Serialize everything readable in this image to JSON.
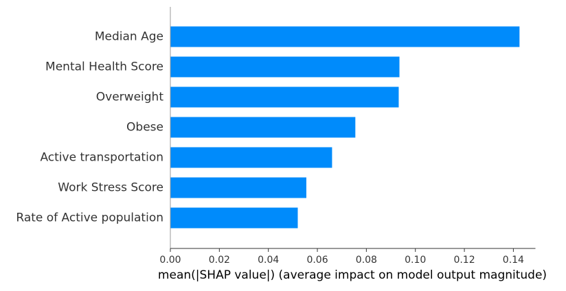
{
  "chart_data": {
    "type": "bar",
    "orientation": "horizontal",
    "categories": [
      "Median Age",
      "Mental Health Score",
      "Overweight",
      "Obese",
      "Active transportation",
      "Work Stress Score",
      "Rate of Active population"
    ],
    "values": [
      0.1425,
      0.0935,
      0.0932,
      0.0755,
      0.066,
      0.0555,
      0.052
    ],
    "xlabel": "mean(|SHAP value|) (average impact on model output magnitude)",
    "ylabel": "",
    "title": "",
    "xlim": [
      0,
      0.149
    ],
    "xticks": [
      "0.00",
      "0.02",
      "0.04",
      "0.06",
      "0.08",
      "0.10",
      "0.12",
      "0.14"
    ],
    "grid": false,
    "legend": "none",
    "bar_color": "#008bfb"
  }
}
